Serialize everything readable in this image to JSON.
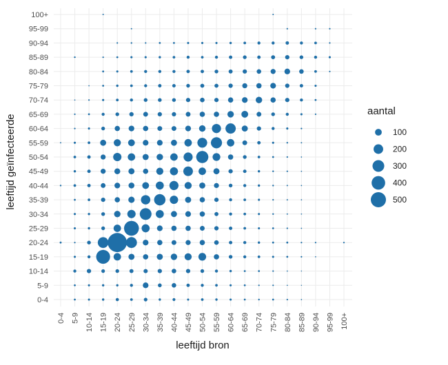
{
  "chart_data": {
    "type": "scatter",
    "subtype": "bubble",
    "xlabel": "leeftijd bron",
    "ylabel": "leeftijd geïnfecteerde",
    "categories": [
      "0-4",
      "5-9",
      "10-14",
      "15-19",
      "20-24",
      "25-29",
      "30-34",
      "35-39",
      "40-44",
      "45-49",
      "50-54",
      "55-59",
      "60-64",
      "65-69",
      "70-74",
      "75-79",
      "80-84",
      "85-89",
      "90-94",
      "95-99",
      "100+"
    ],
    "grid": true,
    "legend": {
      "title": "aantal",
      "position": "right",
      "values": [
        100,
        200,
        300,
        400,
        500
      ]
    },
    "color": "#1f6fa8",
    "matrix_note": "rows = leeftijd geinfecteerde (0-4 .. 100+), cols = leeftijd bron (0-4 .. 100+); values = aantal",
    "values": [
      [
        0,
        8,
        10,
        12,
        22,
        15,
        28,
        12,
        18,
        10,
        15,
        12,
        10,
        8,
        6,
        8,
        5,
        3,
        0,
        0,
        0
      ],
      [
        0,
        8,
        10,
        12,
        12,
        20,
        70,
        32,
        45,
        25,
        20,
        15,
        10,
        8,
        5,
        5,
        3,
        2,
        0,
        0,
        0
      ],
      [
        0,
        20,
        40,
        28,
        30,
        35,
        38,
        40,
        45,
        40,
        30,
        20,
        12,
        8,
        8,
        5,
        3,
        2,
        0,
        0,
        0
      ],
      [
        0,
        10,
        20,
        420,
        120,
        80,
        60,
        80,
        90,
        110,
        130,
        60,
        30,
        20,
        15,
        10,
        8,
        5,
        3,
        0,
        0
      ],
      [
        8,
        5,
        30,
        250,
        800,
        260,
        70,
        60,
        50,
        55,
        60,
        45,
        25,
        20,
        12,
        8,
        8,
        5,
        5,
        0,
        5
      ],
      [
        0,
        10,
        12,
        30,
        120,
        480,
        140,
        70,
        60,
        60,
        50,
        40,
        25,
        15,
        10,
        8,
        5,
        3,
        0,
        0,
        0
      ],
      [
        0,
        10,
        12,
        30,
        90,
        150,
        300,
        140,
        80,
        70,
        60,
        35,
        20,
        15,
        10,
        6,
        4,
        3,
        0,
        0,
        0
      ],
      [
        0,
        8,
        15,
        40,
        60,
        85,
        190,
        280,
        150,
        80,
        60,
        40,
        20,
        15,
        10,
        5,
        4,
        3,
        0,
        0,
        0
      ],
      [
        6,
        15,
        25,
        50,
        70,
        75,
        100,
        140,
        180,
        110,
        80,
        55,
        30,
        20,
        12,
        6,
        4,
        3,
        0,
        0,
        0
      ],
      [
        0,
        12,
        25,
        55,
        75,
        80,
        60,
        110,
        140,
        200,
        120,
        80,
        40,
        25,
        12,
        6,
        5,
        3,
        0,
        0,
        0
      ],
      [
        0,
        15,
        25,
        55,
        150,
        120,
        80,
        90,
        120,
        180,
        320,
        130,
        60,
        30,
        15,
        8,
        5,
        3,
        0,
        0,
        0
      ],
      [
        4,
        10,
        15,
        80,
        110,
        100,
        70,
        70,
        80,
        120,
        210,
        270,
        120,
        50,
        25,
        10,
        6,
        4,
        0,
        0,
        0
      ],
      [
        0,
        5,
        10,
        30,
        60,
        70,
        60,
        50,
        50,
        70,
        90,
        180,
        230,
        80,
        40,
        20,
        10,
        5,
        0,
        0,
        0
      ],
      [
        0,
        5,
        8,
        20,
        30,
        40,
        50,
        40,
        40,
        50,
        60,
        60,
        90,
        100,
        50,
        30,
        20,
        10,
        5,
        0,
        0
      ],
      [
        0,
        3,
        5,
        10,
        15,
        20,
        30,
        30,
        30,
        40,
        45,
        40,
        60,
        70,
        90,
        60,
        40,
        20,
        8,
        0,
        0
      ],
      [
        0,
        0,
        3,
        8,
        12,
        15,
        20,
        25,
        25,
        30,
        35,
        35,
        40,
        55,
        60,
        70,
        40,
        25,
        10,
        0,
        0
      ],
      [
        0,
        0,
        0,
        8,
        10,
        15,
        20,
        20,
        20,
        25,
        25,
        30,
        35,
        40,
        45,
        55,
        70,
        45,
        15,
        5,
        0
      ],
      [
        0,
        6,
        0,
        5,
        8,
        10,
        10,
        12,
        15,
        20,
        15,
        20,
        25,
        30,
        25,
        35,
        40,
        30,
        20,
        10,
        0
      ],
      [
        0,
        0,
        0,
        0,
        5,
        6,
        5,
        8,
        8,
        10,
        10,
        10,
        12,
        15,
        20,
        20,
        25,
        20,
        15,
        5,
        0
      ],
      [
        0,
        0,
        0,
        0,
        0,
        4,
        0,
        0,
        0,
        0,
        0,
        0,
        0,
        0,
        0,
        0,
        5,
        0,
        5,
        5,
        0
      ],
      [
        0,
        0,
        0,
        4,
        0,
        0,
        0,
        0,
        0,
        0,
        0,
        0,
        0,
        0,
        0,
        4,
        0,
        0,
        0,
        0,
        0
      ]
    ]
  }
}
